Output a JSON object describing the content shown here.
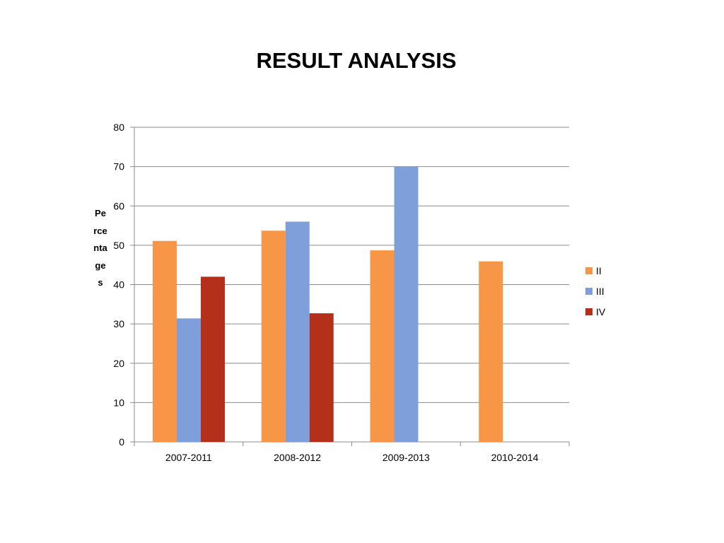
{
  "chart_data": {
    "type": "bar",
    "title": "RESULT ANALYSIS",
    "ylabel": "Percentages",
    "xlabel": "",
    "categories": [
      "2007-2011",
      "2008-2012",
      "2009-2013",
      "2010-2014"
    ],
    "series": [
      {
        "name": "II",
        "color": "#F79646",
        "values": [
          51.1,
          53.7,
          48.7,
          45.9
        ]
      },
      {
        "name": "III",
        "color": "#7F9FDB",
        "values": [
          31.4,
          56.0,
          70.0,
          null
        ]
      },
      {
        "name": "IV",
        "color": "#B5301A",
        "values": [
          42.0,
          32.7,
          null,
          null
        ]
      }
    ],
    "ylim": [
      0,
      80
    ],
    "yticks": [
      0,
      10,
      20,
      30,
      40,
      50,
      60,
      70,
      80
    ],
    "grid": true,
    "legend": "right"
  }
}
